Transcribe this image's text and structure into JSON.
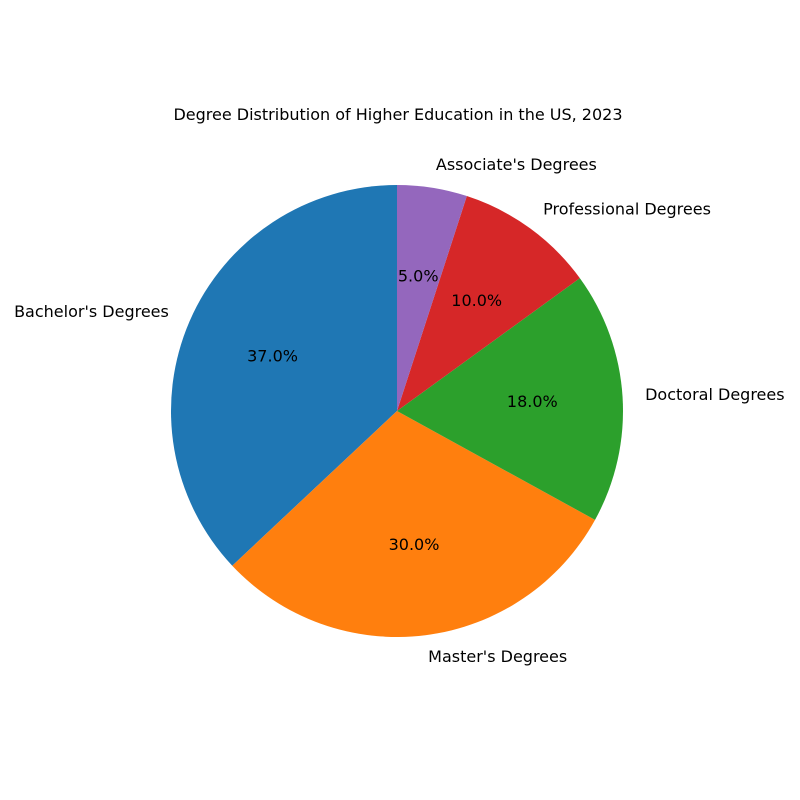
{
  "chart_data": {
    "type": "pie",
    "title": "Degree Distribution of Higher Education in the US, 2023",
    "categories": [
      "Bachelor's Degrees",
      "Master's Degrees",
      "Doctoral Degrees",
      "Professional Degrees",
      "Associate's Degrees"
    ],
    "values": [
      37.0,
      30.0,
      18.0,
      10.0,
      5.0
    ],
    "value_labels": [
      "37.0%",
      "30.0%",
      "18.0%",
      "10.0%",
      "5.0%"
    ],
    "colors": [
      "#1f77b4",
      "#ff7f0e",
      "#2ca02c",
      "#d62728",
      "#9467bd"
    ],
    "start_angle": "top",
    "direction": "counterclockwise",
    "legend": "none"
  }
}
